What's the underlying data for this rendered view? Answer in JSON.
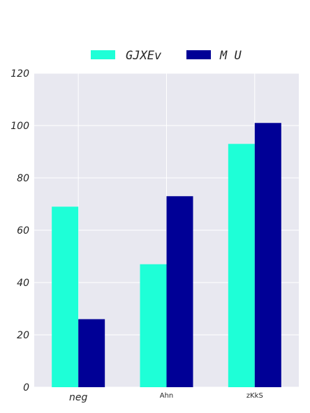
{
  "chart_data": {
    "type": "bar",
    "categories": [
      "neg",
      "Ahn",
      "zKkS"
    ],
    "series": [
      {
        "name": "GJXEv",
        "values": [
          69,
          47,
          93
        ],
        "color": "#1effd7"
      },
      {
        "name": "M U",
        "values": [
          26,
          73,
          101
        ],
        "color": "#000096"
      }
    ],
    "ylim": [
      0,
      120
    ],
    "yticks": [
      0,
      20,
      40,
      60,
      80,
      100,
      120
    ],
    "grid": true,
    "legend_position": "top-center",
    "plot_background": "#e8e8f0"
  }
}
